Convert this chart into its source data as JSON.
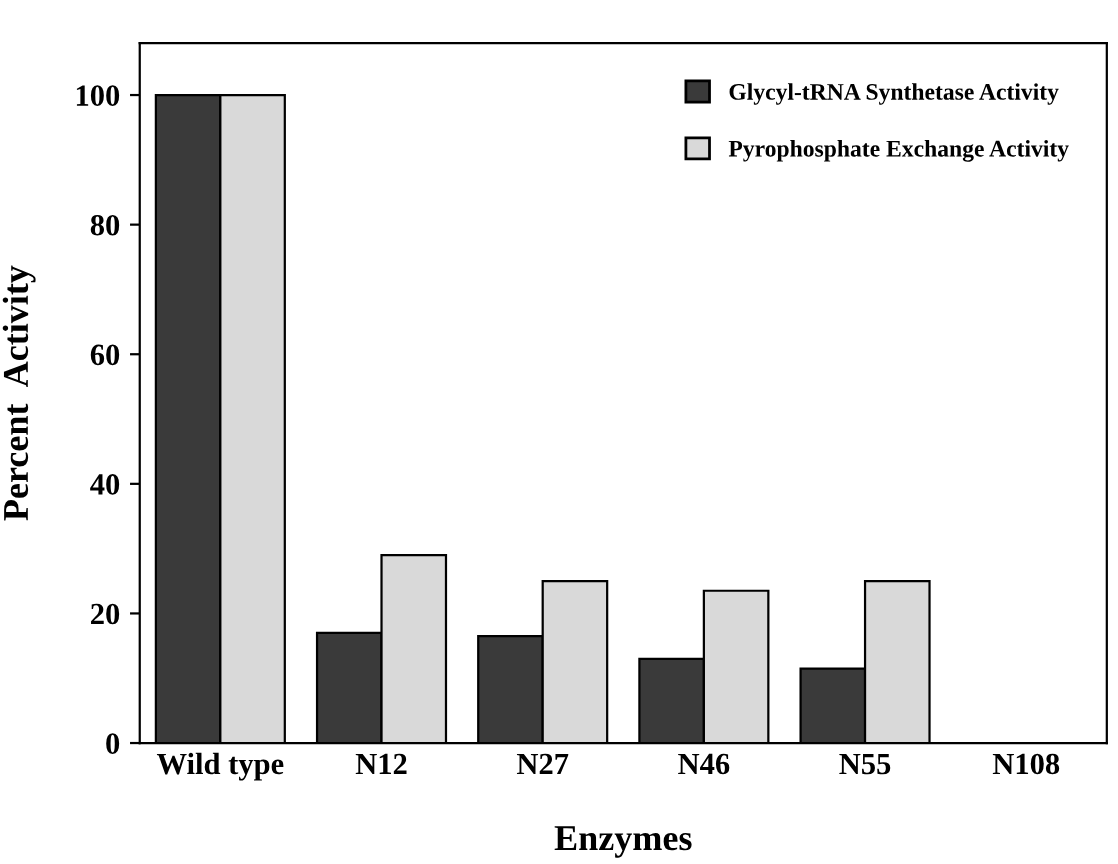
{
  "chart_data": {
    "type": "bar",
    "xlabel": "Enzymes",
    "ylabel": "Percent  Activity",
    "categories": [
      "Wild type",
      "N12",
      "N27",
      "N46",
      "N55",
      "N108"
    ],
    "series": [
      {
        "name": "Glycyl-tRNA Synthetase Activity",
        "color": "#3a3a3a",
        "values": [
          100,
          17,
          16.5,
          13,
          11.5,
          0
        ]
      },
      {
        "name": "Pyrophosphate Exchange Activity",
        "color": "#d9d9d9",
        "values": [
          100,
          29,
          25,
          23.5,
          25,
          0
        ]
      }
    ],
    "ylim": [
      0,
      108
    ],
    "yticks": [
      0,
      20,
      40,
      60,
      80,
      100
    ],
    "legend": "top right",
    "grid": false
  }
}
